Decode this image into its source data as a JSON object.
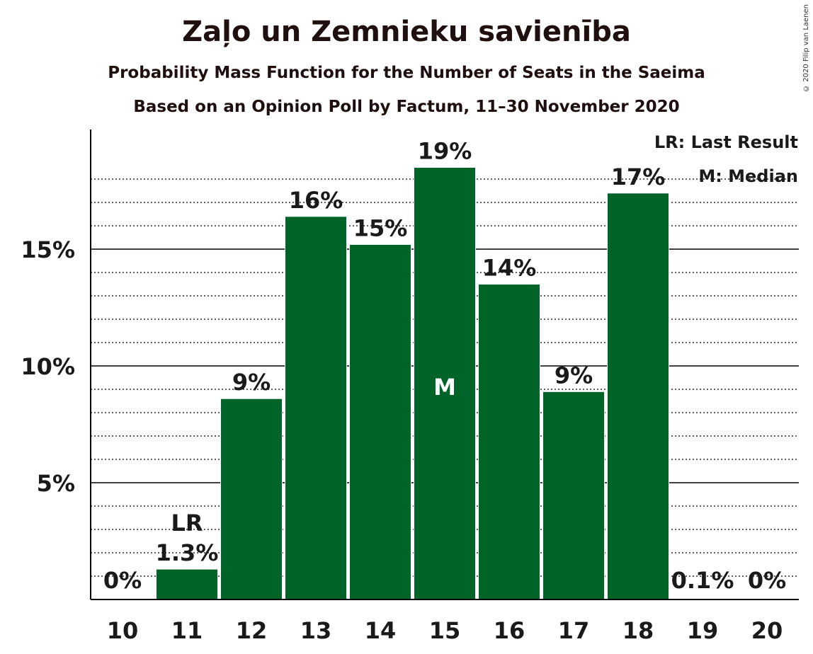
{
  "chart_data": {
    "type": "bar",
    "title": "Zaļo un Zemnieku savienība",
    "subtitle": "Probability Mass Function for the Number of Seats in the Saeima",
    "subtitle2": "Based on an Opinion Poll by Factum, 11–30 November 2020",
    "copyright": "© 2020 Filip van Laenen",
    "categories": [
      "10",
      "11",
      "12",
      "13",
      "14",
      "15",
      "16",
      "17",
      "18",
      "19",
      "20"
    ],
    "values": [
      0,
      1.3,
      8.6,
      16.4,
      15.2,
      18.5,
      13.5,
      8.9,
      17.4,
      0.1,
      0
    ],
    "data_labels": [
      "0%",
      "1.3%",
      "9%",
      "16%",
      "15%",
      "19%",
      "14%",
      "9%",
      "17%",
      "0.1%",
      "0%"
    ],
    "y_ticks": [
      5,
      10,
      15
    ],
    "y_tick_labels": [
      "5%",
      "10%",
      "15%"
    ],
    "ylim": [
      0,
      20
    ],
    "bar_color": "#006428",
    "grid": "dotted every 1%, solid every 5%",
    "last_result": {
      "category": "11",
      "label": "LR"
    },
    "median": {
      "category": "15",
      "label": "M"
    },
    "legend": [
      "LR: Last Result",
      "M: Median"
    ],
    "legend_position": "top-right"
  }
}
